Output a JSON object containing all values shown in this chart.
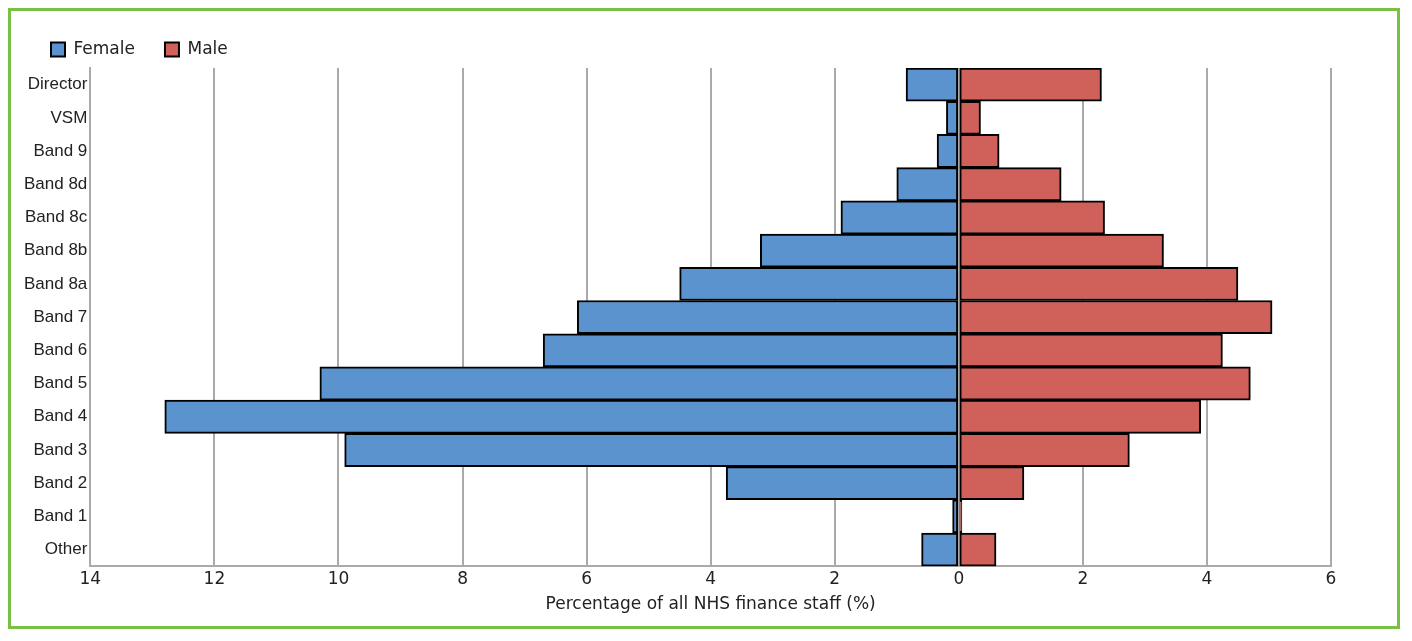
{
  "chart_data": {
    "type": "bar",
    "orientation": "horizontal",
    "stacked": true,
    "xlabel": "Percentage of all NHS finance staff (%)",
    "categories": [
      "Director",
      "VSM",
      "Band 9",
      "Band 8d",
      "Band 8c",
      "Band 8b",
      "Band 8a",
      "Band 7",
      "Band 6",
      "Band 5",
      "Band 4",
      "Band 3",
      "Band 2",
      "Band 1",
      "Other"
    ],
    "series": [
      {
        "name": "Female",
        "color": "#5b93cf",
        "values": [
          -0.85,
          -0.2,
          -0.35,
          -1.0,
          -1.9,
          -3.2,
          -4.5,
          -6.15,
          -6.7,
          -10.3,
          -12.8,
          -9.9,
          -3.75,
          -0.1,
          -0.6
        ]
      },
      {
        "name": "Male",
        "color": "#d0605a",
        "values": [
          2.3,
          0.35,
          0.65,
          1.65,
          2.35,
          3.3,
          4.5,
          5.05,
          4.25,
          4.7,
          3.9,
          2.75,
          1.05,
          0.05,
          0.6
        ]
      }
    ],
    "xlim": [
      -14,
      6
    ],
    "xticks": [
      {
        "value": -14,
        "label": "14"
      },
      {
        "value": -12,
        "label": "12"
      },
      {
        "value": -10,
        "label": "10"
      },
      {
        "value": -8,
        "label": "8"
      },
      {
        "value": -6,
        "label": "6"
      },
      {
        "value": -4,
        "label": "4"
      },
      {
        "value": -2,
        "label": "2"
      },
      0,
      2,
      4,
      6
    ],
    "grid": "x",
    "legend": "top"
  }
}
